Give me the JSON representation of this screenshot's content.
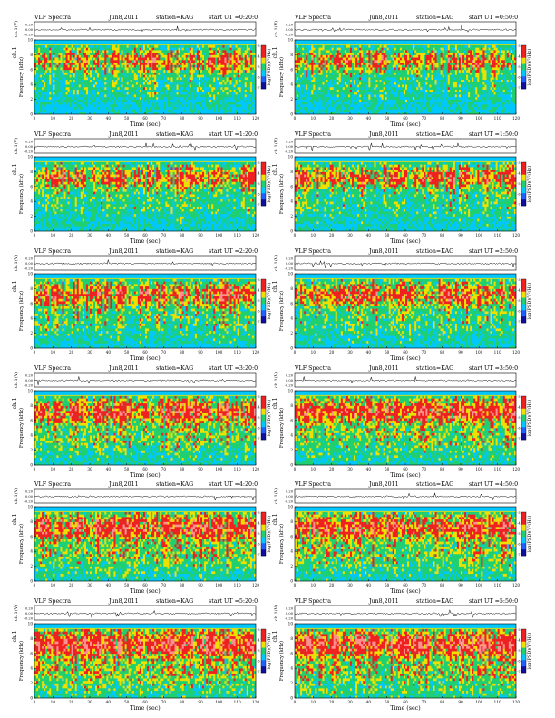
{
  "chart_data": [
    {
      "type": "heatmap",
      "title": "VLF Spectra",
      "date": "Jun8,2011",
      "station": "station=KAG",
      "start": "start UT =0:20:0",
      "channel_label": "ch.1",
      "waveform_ylabel": "ch.1(V)",
      "waveform_ticks": [
        "0.20",
        "0.00",
        "-0.20"
      ],
      "ylabel": "Frequency (kHz)",
      "yticks": [
        "0",
        "2",
        "4",
        "6",
        "8",
        "10"
      ],
      "xlabel": "Time (sec)",
      "xticks": [
        "0",
        "10",
        "20",
        "30",
        "40",
        "50",
        "60",
        "70",
        "80",
        "90",
        "100",
        "110",
        "120"
      ],
      "xlim": [
        0,
        120
      ],
      "ylim": [
        0,
        10
      ],
      "colorbar_label": "log(PSD)(V²/Hz)",
      "colorbar_ticks": [
        "-3",
        "-4",
        "-5",
        "-6",
        "-7"
      ]
    },
    {
      "type": "heatmap",
      "title": "VLF Spectra",
      "date": "Jun8,2011",
      "station": "station=KAG",
      "start": "start UT =0:50:0",
      "channel_label": "ch.1",
      "waveform_ylabel": "ch.1(V)",
      "waveform_ticks": [
        "0.20",
        "0.00",
        "-0.20"
      ],
      "ylabel": "Frequency (kHz)",
      "yticks": [
        "0",
        "2",
        "4",
        "6",
        "8",
        "10"
      ],
      "xlabel": "Time (sec)",
      "xticks": [
        "0",
        "10",
        "20",
        "30",
        "40",
        "50",
        "60",
        "70",
        "80",
        "90",
        "100",
        "110",
        "120"
      ],
      "xlim": [
        0,
        120
      ],
      "ylim": [
        0,
        10
      ],
      "colorbar_label": "log(PSD)(V²/Hz)",
      "colorbar_ticks": [
        "-3",
        "-4",
        "-5",
        "-6",
        "-7"
      ]
    },
    {
      "type": "heatmap",
      "title": "VLF Spectra",
      "date": "Jun8,2011",
      "station": "station=KAG",
      "start": "start UT =1:20:0",
      "channel_label": "ch.1",
      "waveform_ylabel": "ch.1(V)",
      "waveform_ticks": [
        "0.20",
        "0.00",
        "-0.20"
      ],
      "ylabel": "Frequency (kHz)",
      "yticks": [
        "0",
        "2",
        "4",
        "6",
        "8",
        "10"
      ],
      "xlabel": "Time (sec)",
      "xticks": [
        "0",
        "10",
        "20",
        "30",
        "40",
        "50",
        "60",
        "70",
        "80",
        "90",
        "100",
        "110",
        "120"
      ],
      "xlim": [
        0,
        120
      ],
      "ylim": [
        0,
        10
      ],
      "colorbar_label": "log(PSD)(V²/Hz)",
      "colorbar_ticks": [
        "-3",
        "-4",
        "-5",
        "-6",
        "-7"
      ]
    },
    {
      "type": "heatmap",
      "title": "VLF Spectra",
      "date": "Jun8,2011",
      "station": "station=KAG",
      "start": "start UT =1:50:0",
      "channel_label": "ch.1",
      "waveform_ylabel": "ch.1(V)",
      "waveform_ticks": [
        "0.20",
        "0.00",
        "-0.20"
      ],
      "ylabel": "Frequency (kHz)",
      "yticks": [
        "0",
        "2",
        "4",
        "6",
        "8",
        "10"
      ],
      "xlabel": "Time (sec)",
      "xticks": [
        "0",
        "10",
        "20",
        "30",
        "40",
        "50",
        "60",
        "70",
        "80",
        "90",
        "100",
        "110",
        "120"
      ],
      "xlim": [
        0,
        120
      ],
      "ylim": [
        0,
        10
      ],
      "colorbar_label": "log(PSD)(V²/Hz)",
      "colorbar_ticks": [
        "-3",
        "-4",
        "-5",
        "-6",
        "-7"
      ]
    },
    {
      "type": "heatmap",
      "title": "VLF Spectra",
      "date": "Jun8,2011",
      "station": "station=KAG",
      "start": "start UT =2:20:0",
      "channel_label": "ch.1",
      "waveform_ylabel": "ch.1(V)",
      "waveform_ticks": [
        "0.20",
        "0.00",
        "-0.20"
      ],
      "ylabel": "Frequency (kHz)",
      "yticks": [
        "0",
        "2",
        "4",
        "6",
        "8",
        "10"
      ],
      "xlabel": "Time (sec)",
      "xticks": [
        "0",
        "10",
        "20",
        "30",
        "40",
        "50",
        "60",
        "70",
        "80",
        "90",
        "100",
        "110",
        "120"
      ],
      "xlim": [
        0,
        120
      ],
      "ylim": [
        0,
        10
      ],
      "colorbar_label": "log(PSD)(V²/Hz)",
      "colorbar_ticks": [
        "-3",
        "-4",
        "-5",
        "-6",
        "-7"
      ]
    },
    {
      "type": "heatmap",
      "title": "VLF Spectra",
      "date": "Jun8,2011",
      "station": "station=KAG",
      "start": "start UT =2:50:0",
      "channel_label": "ch.1",
      "waveform_ylabel": "ch.1(V)",
      "waveform_ticks": [
        "0.20",
        "0.00",
        "-0.20"
      ],
      "ylabel": "Frequency (kHz)",
      "yticks": [
        "0",
        "2",
        "4",
        "6",
        "8",
        "10"
      ],
      "xlabel": "Time (sec)",
      "xticks": [
        "0",
        "10",
        "20",
        "30",
        "40",
        "50",
        "60",
        "70",
        "80",
        "90",
        "100",
        "110",
        "120"
      ],
      "xlim": [
        0,
        120
      ],
      "ylim": [
        0,
        10
      ],
      "colorbar_label": "log(PSD)(V²/Hz)",
      "colorbar_ticks": [
        "-3",
        "-4",
        "-5",
        "-6",
        "-7"
      ]
    },
    {
      "type": "heatmap",
      "title": "VLF Spectra",
      "date": "Jun8,2011",
      "station": "station=KAG",
      "start": "start UT =3:20:0",
      "channel_label": "ch.1",
      "waveform_ylabel": "ch.1(V)",
      "waveform_ticks": [
        "0.20",
        "0.00",
        "-0.20"
      ],
      "ylabel": "Frequency (kHz)",
      "yticks": [
        "0",
        "2",
        "4",
        "6",
        "8",
        "10"
      ],
      "xlabel": "Time (sec)",
      "xticks": [
        "0",
        "10",
        "20",
        "30",
        "40",
        "50",
        "60",
        "70",
        "80",
        "90",
        "100",
        "110",
        "120"
      ],
      "xlim": [
        0,
        120
      ],
      "ylim": [
        0,
        10
      ],
      "colorbar_label": "log(PSD)(V²/Hz)",
      "colorbar_ticks": [
        "-3",
        "-4",
        "-5",
        "-6",
        "-7"
      ]
    },
    {
      "type": "heatmap",
      "title": "VLF Spectra",
      "date": "Jun8,2011",
      "station": "station=KAG",
      "start": "start UT =3:50:0",
      "channel_label": "ch.1",
      "waveform_ylabel": "ch.1(V)",
      "waveform_ticks": [
        "0.20",
        "0.00",
        "-0.20"
      ],
      "ylabel": "Frequency (kHz)",
      "yticks": [
        "0",
        "2",
        "4",
        "6",
        "8",
        "10"
      ],
      "xlabel": "Time (sec)",
      "xticks": [
        "0",
        "10",
        "20",
        "30",
        "40",
        "50",
        "60",
        "70",
        "80",
        "90",
        "100",
        "110",
        "120"
      ],
      "xlim": [
        0,
        120
      ],
      "ylim": [
        0,
        10
      ],
      "colorbar_label": "log(PSD)(V²/Hz)",
      "colorbar_ticks": [
        "-3",
        "-4",
        "-5",
        "-6",
        "-7"
      ]
    },
    {
      "type": "heatmap",
      "title": "VLF Spectra",
      "date": "Jun8,2011",
      "station": "station=KAG",
      "start": "start UT =4:20:0",
      "channel_label": "ch.1",
      "waveform_ylabel": "ch.1(V)",
      "waveform_ticks": [
        "0.20",
        "0.00",
        "-0.20"
      ],
      "ylabel": "Frequency (kHz)",
      "yticks": [
        "0",
        "2",
        "4",
        "6",
        "8",
        "10"
      ],
      "xlabel": "Time (sec)",
      "xticks": [
        "0",
        "10",
        "20",
        "30",
        "40",
        "50",
        "60",
        "70",
        "80",
        "90",
        "100",
        "110",
        "120"
      ],
      "xlim": [
        0,
        120
      ],
      "ylim": [
        0,
        10
      ],
      "colorbar_label": "log(PSD)(V²/Hz)",
      "colorbar_ticks": [
        "-3",
        "-4",
        "-5",
        "-6",
        "-7"
      ]
    },
    {
      "type": "heatmap",
      "title": "VLF Spectra",
      "date": "Jun8,2011",
      "station": "station=KAG",
      "start": "start UT =4:50:0",
      "channel_label": "ch.1",
      "waveform_ylabel": "ch.1(V)",
      "waveform_ticks": [
        "0.20",
        "0.00",
        "-0.20"
      ],
      "ylabel": "Frequency (kHz)",
      "yticks": [
        "0",
        "2",
        "4",
        "6",
        "8",
        "10"
      ],
      "xlabel": "Time (sec)",
      "xticks": [
        "0",
        "10",
        "20",
        "30",
        "40",
        "50",
        "60",
        "70",
        "80",
        "90",
        "100",
        "110",
        "120"
      ],
      "xlim": [
        0,
        120
      ],
      "ylim": [
        0,
        10
      ],
      "colorbar_label": "log(PSD)(V²/Hz)",
      "colorbar_ticks": [
        "-3",
        "-4",
        "-5",
        "-6",
        "-7"
      ]
    },
    {
      "type": "heatmap",
      "title": "VLF Spectra",
      "date": "Jun8,2011",
      "station": "station=KAG",
      "start": "start UT =5:20:0",
      "channel_label": "ch.1",
      "waveform_ylabel": "ch.1(V)",
      "waveform_ticks": [
        "0.20",
        "0.00",
        "-0.20"
      ],
      "ylabel": "Frequency (kHz)",
      "yticks": [
        "0",
        "2",
        "4",
        "6",
        "8",
        "10"
      ],
      "xlabel": "Time (sec)",
      "xticks": [
        "0",
        "10",
        "20",
        "30",
        "40",
        "50",
        "60",
        "70",
        "80",
        "90",
        "100",
        "110",
        "120"
      ],
      "xlim": [
        0,
        120
      ],
      "ylim": [
        0,
        10
      ],
      "colorbar_label": "log(PSD)(V²/Hz)",
      "colorbar_ticks": [
        "-3",
        "-4",
        "-5",
        "-6",
        "-7"
      ]
    },
    {
      "type": "heatmap",
      "title": "VLF Spectra",
      "date": "Jun8,2011",
      "station": "station=KAG",
      "start": "start UT =5:50:0",
      "channel_label": "ch.1",
      "waveform_ylabel": "ch.1(V)",
      "waveform_ticks": [
        "0.20",
        "0.00",
        "-0.20"
      ],
      "ylabel": "Frequency (kHz)",
      "yticks": [
        "0",
        "2",
        "4",
        "6",
        "8",
        "10"
      ],
      "xlabel": "Time (sec)",
      "xticks": [
        "0",
        "10",
        "20",
        "30",
        "40",
        "50",
        "60",
        "70",
        "80",
        "90",
        "100",
        "110",
        "120"
      ],
      "xlim": [
        0,
        120
      ],
      "ylim": [
        0,
        10
      ],
      "colorbar_label": "log(PSD)(V²/Hz)",
      "colorbar_ticks": [
        "-3",
        "-4",
        "-5",
        "-6",
        "-7"
      ]
    }
  ],
  "colors": {
    "background": "#ffffff",
    "psd_low": "#00c8ff",
    "psd_mid_low": "#20d070",
    "psd_mid": "#f0e000",
    "psd_high": "#f02020",
    "psd_peak": "#ff9090",
    "colorbar_bottom": "#1010a0",
    "axis": "#000000"
  }
}
